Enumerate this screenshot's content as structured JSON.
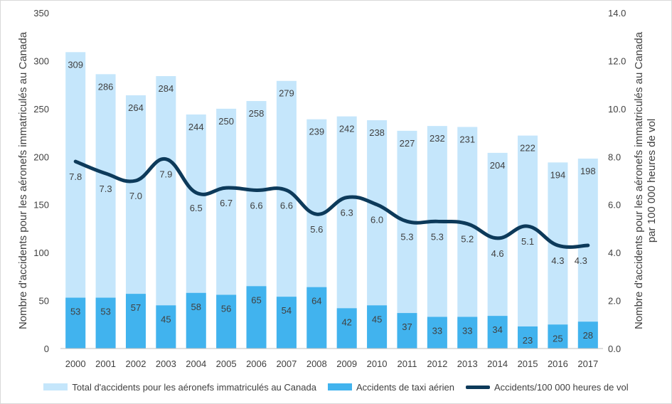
{
  "chart_data": {
    "type": "bar",
    "categories": [
      "2000",
      "2001",
      "2002",
      "2003",
      "2004",
      "2005",
      "2006",
      "2007",
      "2008",
      "2009",
      "2010",
      "2011",
      "2012",
      "2013",
      "2014",
      "2015",
      "2016",
      "2017"
    ],
    "series": [
      {
        "name": "Total d'accidents pour les aéronefs immatriculés au Canada",
        "type": "bar",
        "axis": "left",
        "color": "#c5e6fb",
        "values": [
          309,
          286,
          264,
          284,
          244,
          250,
          258,
          279,
          239,
          242,
          238,
          227,
          232,
          231,
          204,
          222,
          194,
          198
        ]
      },
      {
        "name": "Accidents de taxi aérien",
        "type": "bar",
        "axis": "left",
        "color": "#41b3ee",
        "values": [
          53,
          53,
          57,
          45,
          58,
          56,
          65,
          54,
          64,
          42,
          45,
          37,
          33,
          33,
          34,
          23,
          25,
          28
        ]
      },
      {
        "name": "Accidents/100 000 heures de vol",
        "type": "line",
        "axis": "right",
        "color": "#0d3a5a",
        "values": [
          7.8,
          7.3,
          7.0,
          7.9,
          6.5,
          6.7,
          6.6,
          6.6,
          5.6,
          6.3,
          6.0,
          5.3,
          5.3,
          5.2,
          4.6,
          5.1,
          4.3,
          4.3
        ],
        "labels": [
          "7.8",
          "7.3",
          "7.0",
          "7.9",
          "6.5",
          "6.7",
          "6.6",
          "6.6",
          "5.6",
          "6.3",
          "6.0",
          "5.3",
          "5.3",
          "5.2",
          "4.6",
          "5.1",
          "4.3",
          "4.3"
        ]
      }
    ],
    "ylabel_left": "Nombre d'accidents  pour les aéronefs immatriculés au Canada",
    "ylabel_right_line1": "Nombre d'accidents pour les aéronefs immatriculés au Canada",
    "ylabel_right_line2": "par 100 000 heures de vol",
    "ylim_left": [
      0,
      350
    ],
    "ylim_right": [
      0,
      14
    ],
    "yticks_left": [
      "0",
      "50",
      "100",
      "150",
      "200",
      "250",
      "300",
      "350"
    ],
    "yticks_right": [
      "0.0",
      "2.0",
      "4.0",
      "6.0",
      "8.0",
      "10.0",
      "12.0",
      "14.0"
    ],
    "grid": false,
    "legend_position": "bottom"
  }
}
